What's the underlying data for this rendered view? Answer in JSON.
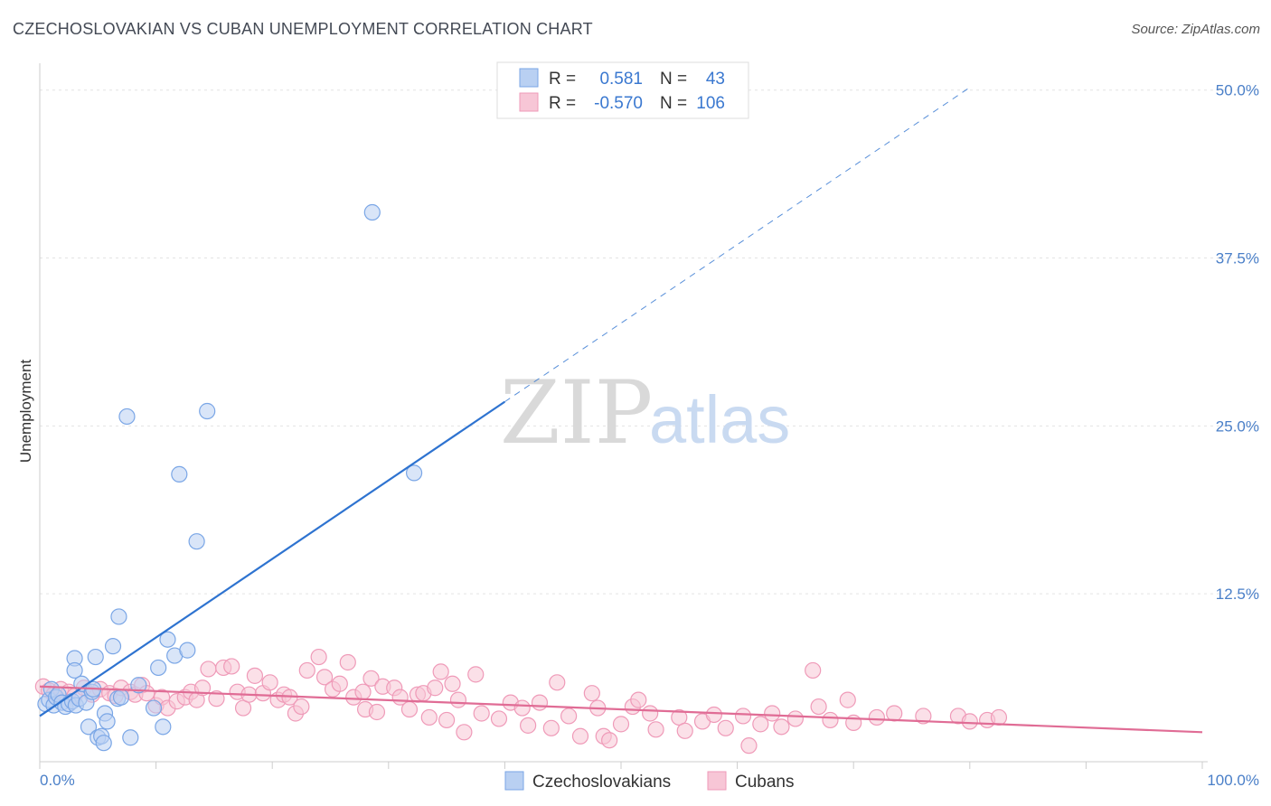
{
  "title": "CZECHOSLOVAKIAN VS CUBAN UNEMPLOYMENT CORRELATION CHART",
  "source": "Source: ZipAtlas.com",
  "watermark": {
    "part1": "ZIP",
    "part2": "atlas"
  },
  "chart_data": {
    "type": "scatter",
    "title": "CZECHOSLOVAKIAN VS CUBAN UNEMPLOYMENT CORRELATION CHART",
    "xlabel": "",
    "ylabel": "Unemployment",
    "xlim": [
      0,
      100
    ],
    "ylim": [
      0,
      52
    ],
    "x_tick_labels": {
      "min": "0.0%",
      "max": "100.0%"
    },
    "y_ticks": [
      12.5,
      25.0,
      37.5,
      50.0
    ],
    "y_tick_labels": [
      "12.5%",
      "25.0%",
      "37.5%",
      "50.0%"
    ],
    "grid": true,
    "legend": {
      "position": "top-center",
      "entries": [
        {
          "series": "Czechoslovakians",
          "r_label": "R =",
          "r_value": "0.581",
          "n_label": "N =",
          "n_value": "43"
        },
        {
          "series": "Cubans",
          "r_label": "R =",
          "r_value": "-0.570",
          "n_label": "N =",
          "n_value": "106"
        }
      ]
    },
    "series": [
      {
        "name": "Czechoslovakians",
        "color": "#7aa6e6",
        "fill": "#b9d0f2",
        "line_color": "#2e73d0",
        "trend": {
          "x0": 0,
          "y0": 3.4,
          "x1": 40,
          "y1": 26.8,
          "dash_to_x": 80
        },
        "points": [
          [
            0.5,
            4.3
          ],
          [
            0.8,
            4.6
          ],
          [
            1.0,
            5.4
          ],
          [
            1.2,
            4.2
          ],
          [
            1.4,
            4.8
          ],
          [
            1.6,
            5.0
          ],
          [
            1.9,
            4.4
          ],
          [
            2.2,
            4.1
          ],
          [
            2.5,
            4.3
          ],
          [
            2.8,
            4.5
          ],
          [
            3.0,
            7.7
          ],
          [
            3.1,
            4.2
          ],
          [
            3.0,
            6.8
          ],
          [
            3.4,
            4.7
          ],
          [
            3.6,
            5.8
          ],
          [
            4.0,
            4.4
          ],
          [
            4.2,
            2.6
          ],
          [
            4.5,
            5.2
          ],
          [
            4.6,
            5.4
          ],
          [
            4.8,
            7.8
          ],
          [
            5.0,
            1.8
          ],
          [
            5.3,
            1.9
          ],
          [
            5.5,
            1.4
          ],
          [
            5.6,
            3.6
          ],
          [
            5.8,
            3.0
          ],
          [
            6.3,
            8.6
          ],
          [
            6.7,
            4.7
          ],
          [
            6.8,
            10.8
          ],
          [
            7.0,
            4.8
          ],
          [
            7.5,
            25.7
          ],
          [
            7.8,
            1.8
          ],
          [
            8.5,
            5.7
          ],
          [
            9.8,
            4.0
          ],
          [
            10.2,
            7.0
          ],
          [
            10.6,
            2.6
          ],
          [
            11.0,
            9.1
          ],
          [
            11.6,
            7.9
          ],
          [
            12.0,
            21.4
          ],
          [
            12.7,
            8.3
          ],
          [
            13.5,
            16.4
          ],
          [
            14.4,
            26.1
          ],
          [
            28.6,
            40.9
          ],
          [
            32.2,
            21.5
          ]
        ]
      },
      {
        "name": "Cubans",
        "color": "#ef9ab8",
        "fill": "#f7c6d6",
        "line_color": "#e06c95",
        "trend": {
          "x0": 0,
          "y0": 5.6,
          "x1": 100,
          "y1": 2.2
        },
        "points": [
          [
            0.3,
            5.6
          ],
          [
            0.8,
            5.3
          ],
          [
            1.2,
            5.0
          ],
          [
            1.8,
            5.4
          ],
          [
            2.5,
            5.2
          ],
          [
            3.0,
            4.9
          ],
          [
            3.8,
            5.5
          ],
          [
            4.5,
            5.0
          ],
          [
            5.2,
            5.4
          ],
          [
            6.0,
            5.1
          ],
          [
            6.5,
            4.9
          ],
          [
            7.0,
            5.5
          ],
          [
            7.8,
            5.2
          ],
          [
            8.2,
            5.0
          ],
          [
            8.8,
            5.7
          ],
          [
            9.2,
            5.1
          ],
          [
            10.0,
            4.2
          ],
          [
            10.5,
            4.8
          ],
          [
            11.0,
            4.0
          ],
          [
            11.8,
            4.5
          ],
          [
            12.5,
            4.8
          ],
          [
            13.0,
            5.2
          ],
          [
            13.5,
            4.6
          ],
          [
            14.0,
            5.5
          ],
          [
            14.5,
            6.9
          ],
          [
            15.2,
            4.7
          ],
          [
            15.8,
            7.0
          ],
          [
            16.5,
            7.1
          ],
          [
            17.0,
            5.2
          ],
          [
            17.5,
            4.0
          ],
          [
            18.0,
            5.0
          ],
          [
            18.5,
            6.4
          ],
          [
            19.2,
            5.1
          ],
          [
            19.8,
            5.9
          ],
          [
            20.5,
            4.6
          ],
          [
            21.0,
            5.0
          ],
          [
            21.5,
            4.8
          ],
          [
            22.0,
            3.6
          ],
          [
            22.5,
            4.1
          ],
          [
            23.0,
            6.8
          ],
          [
            24.0,
            7.8
          ],
          [
            24.5,
            6.3
          ],
          [
            25.2,
            5.4
          ],
          [
            25.8,
            5.8
          ],
          [
            26.5,
            7.4
          ],
          [
            27.0,
            4.8
          ],
          [
            27.8,
            5.2
          ],
          [
            28.5,
            6.2
          ],
          [
            28.0,
            3.9
          ],
          [
            29.0,
            3.7
          ],
          [
            29.5,
            5.6
          ],
          [
            30.5,
            5.5
          ],
          [
            31.0,
            4.8
          ],
          [
            31.8,
            3.9
          ],
          [
            32.5,
            5.0
          ],
          [
            33.0,
            5.1
          ],
          [
            33.5,
            3.3
          ],
          [
            34.0,
            5.5
          ],
          [
            34.5,
            6.7
          ],
          [
            35.0,
            3.1
          ],
          [
            35.5,
            5.8
          ],
          [
            36.0,
            4.6
          ],
          [
            36.5,
            2.2
          ],
          [
            37.5,
            6.5
          ],
          [
            38.0,
            3.6
          ],
          [
            39.5,
            3.2
          ],
          [
            40.5,
            4.4
          ],
          [
            41.5,
            4.0
          ],
          [
            42.0,
            2.7
          ],
          [
            43.0,
            4.4
          ],
          [
            44.0,
            2.5
          ],
          [
            44.5,
            5.9
          ],
          [
            45.5,
            3.4
          ],
          [
            46.5,
            1.9
          ],
          [
            47.5,
            5.1
          ],
          [
            48.0,
            4.0
          ],
          [
            48.5,
            1.9
          ],
          [
            49.0,
            1.6
          ],
          [
            50.0,
            2.8
          ],
          [
            51.0,
            4.1
          ],
          [
            51.5,
            4.6
          ],
          [
            52.5,
            3.6
          ],
          [
            53.0,
            2.4
          ],
          [
            55.0,
            3.3
          ],
          [
            55.5,
            2.3
          ],
          [
            57.0,
            3.0
          ],
          [
            58.0,
            3.5
          ],
          [
            59.0,
            2.5
          ],
          [
            60.5,
            3.4
          ],
          [
            61.0,
            1.2
          ],
          [
            62.0,
            2.8
          ],
          [
            63.0,
            3.6
          ],
          [
            63.8,
            2.6
          ],
          [
            65.0,
            3.2
          ],
          [
            66.5,
            6.8
          ],
          [
            67.0,
            4.1
          ],
          [
            68.0,
            3.1
          ],
          [
            69.5,
            4.6
          ],
          [
            70.0,
            2.9
          ],
          [
            72.0,
            3.3
          ],
          [
            73.5,
            3.6
          ],
          [
            76.0,
            3.4
          ],
          [
            79.0,
            3.4
          ],
          [
            80.0,
            3.0
          ],
          [
            81.5,
            3.1
          ],
          [
            82.5,
            3.3
          ]
        ]
      }
    ]
  }
}
